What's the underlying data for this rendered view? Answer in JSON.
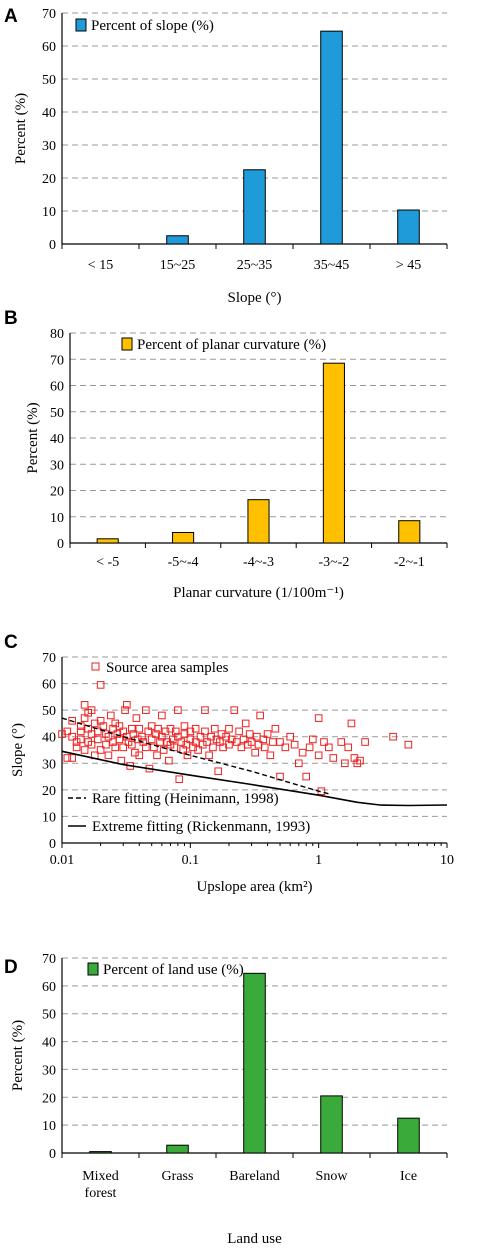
{
  "colors": {
    "blue": "#1f9bd9",
    "orange": "#ffc000",
    "green": "#3aab3a",
    "red": "#ee2222",
    "grid": "#999999"
  },
  "chart_data": [
    {
      "panel": "A",
      "type": "bar",
      "categories": [
        "< 15",
        "15~25",
        "25~35",
        "35~45",
        "> 45"
      ],
      "values": [
        0,
        2.5,
        22.5,
        64.5,
        10.3
      ],
      "legend": "Percent of slope (%)",
      "xlabel": "Slope (°)",
      "ylabel": "Percent (%)",
      "ylim": [
        0,
        70
      ],
      "yticks": [
        "0",
        "10",
        "20",
        "30",
        "40",
        "50",
        "60",
        "70"
      ],
      "grid": true,
      "color": "#1f9bd9"
    },
    {
      "panel": "B",
      "type": "bar",
      "categories": [
        "< -5",
        "-5~-4",
        "-4~-3",
        "-3~-2",
        "-2~-1"
      ],
      "values": [
        1.6,
        4.0,
        16.5,
        68.5,
        8.5
      ],
      "legend": "Percent of planar curvature (%)",
      "xlabel": "Planar curvature (1/100m⁻¹)",
      "ylabel": "Percent (%)",
      "ylim": [
        0,
        80
      ],
      "yticks": [
        "0",
        "10",
        "20",
        "30",
        "40",
        "50",
        "60",
        "70",
        "80"
      ],
      "grid": true,
      "color": "#ffc000"
    },
    {
      "panel": "C",
      "type": "scatter",
      "xscale": "log",
      "xlim": [
        0.01,
        10
      ],
      "ylim": [
        0,
        70
      ],
      "xticks": [
        "0.01",
        "0.1",
        "1",
        "10"
      ],
      "yticks": [
        "0",
        "10",
        "20",
        "30",
        "40",
        "50",
        "60",
        "70"
      ],
      "xlabel": "Upslope area (km²)",
      "ylabel": "Slope (°)",
      "grid": true,
      "series": [
        {
          "name": "Source area samples",
          "marker": "square",
          "points": [
            [
              0.01,
              41
            ],
            [
              0.011,
              42
            ],
            [
              0.011,
              32
            ],
            [
              0.012,
              46
            ],
            [
              0.012,
              40
            ],
            [
              0.012,
              32
            ],
            [
              0.013,
              38
            ],
            [
              0.013,
              36
            ],
            [
              0.014,
              44
            ],
            [
              0.014,
              42
            ],
            [
              0.014,
              39
            ],
            [
              0.015,
              52
            ],
            [
              0.015,
              47
            ],
            [
              0.015,
              35
            ],
            [
              0.016,
              49
            ],
            [
              0.016,
              43
            ],
            [
              0.016,
              38
            ],
            [
              0.017,
              50
            ],
            [
              0.017,
              41
            ],
            [
              0.017,
              37
            ],
            [
              0.018,
              45
            ],
            [
              0.018,
              33
            ],
            [
              0.019,
              42
            ],
            [
              0.019,
              39
            ],
            [
              0.02,
              59.5
            ],
            [
              0.02,
              46
            ],
            [
              0.02,
              35
            ],
            [
              0.021,
              44
            ],
            [
              0.022,
              41
            ],
            [
              0.022,
              37
            ],
            [
              0.023,
              40
            ],
            [
              0.023,
              33
            ],
            [
              0.024,
              48
            ],
            [
              0.025,
              43
            ],
            [
              0.025,
              38
            ],
            [
              0.026,
              45
            ],
            [
              0.026,
              36
            ],
            [
              0.027,
              41
            ],
            [
              0.028,
              39
            ],
            [
              0.028,
              44
            ],
            [
              0.029,
              31
            ],
            [
              0.03,
              42
            ],
            [
              0.03,
              36
            ],
            [
              0.031,
              50
            ],
            [
              0.032,
              52
            ],
            [
              0.032,
              40
            ],
            [
              0.033,
              38
            ],
            [
              0.034,
              29
            ],
            [
              0.035,
              43
            ],
            [
              0.035,
              37
            ],
            [
              0.036,
              41
            ],
            [
              0.037,
              34
            ],
            [
              0.038,
              47
            ],
            [
              0.039,
              39
            ],
            [
              0.04,
              43
            ],
            [
              0.04,
              33
            ],
            [
              0.042,
              40
            ],
            [
              0.043,
              38
            ],
            [
              0.045,
              50
            ],
            [
              0.045,
              36
            ],
            [
              0.047,
              42
            ],
            [
              0.048,
              28
            ],
            [
              0.05,
              39
            ],
            [
              0.05,
              44
            ],
            [
              0.052,
              36
            ],
            [
              0.054,
              41
            ],
            [
              0.055,
              33
            ],
            [
              0.056,
              43
            ],
            [
              0.058,
              38
            ],
            [
              0.06,
              48
            ],
            [
              0.06,
              40
            ],
            [
              0.062,
              35
            ],
            [
              0.064,
              42
            ],
            [
              0.066,
              38
            ],
            [
              0.068,
              31
            ],
            [
              0.07,
              43
            ],
            [
              0.07,
              37
            ],
            [
              0.073,
              39
            ],
            [
              0.075,
              36
            ],
            [
              0.077,
              42
            ],
            [
              0.08,
              40
            ],
            [
              0.08,
              50
            ],
            [
              0.082,
              24
            ],
            [
              0.085,
              38
            ],
            [
              0.088,
              35
            ],
            [
              0.09,
              44
            ],
            [
              0.09,
              41
            ],
            [
              0.093,
              37
            ],
            [
              0.095,
              33
            ],
            [
              0.1,
              39
            ],
            [
              0.1,
              42
            ],
            [
              0.105,
              36
            ],
            [
              0.11,
              43
            ],
            [
              0.11,
              38
            ],
            [
              0.115,
              35
            ],
            [
              0.12,
              40
            ],
            [
              0.125,
              37
            ],
            [
              0.13,
              42
            ],
            [
              0.13,
              50
            ],
            [
              0.135,
              38
            ],
            [
              0.14,
              33
            ],
            [
              0.145,
              40
            ],
            [
              0.15,
              36
            ],
            [
              0.155,
              43
            ],
            [
              0.16,
              39
            ],
            [
              0.165,
              27
            ],
            [
              0.17,
              38
            ],
            [
              0.175,
              41
            ],
            [
              0.18,
              36
            ],
            [
              0.19,
              40
            ],
            [
              0.2,
              37
            ],
            [
              0.2,
              43
            ],
            [
              0.21,
              39
            ],
            [
              0.22,
              50
            ],
            [
              0.23,
              38
            ],
            [
              0.24,
              42
            ],
            [
              0.25,
              36
            ],
            [
              0.26,
              39
            ],
            [
              0.27,
              45
            ],
            [
              0.28,
              37
            ],
            [
              0.29,
              41
            ],
            [
              0.3,
              38
            ],
            [
              0.32,
              34
            ],
            [
              0.33,
              40
            ],
            [
              0.34,
              37
            ],
            [
              0.35,
              48
            ],
            [
              0.37,
              39
            ],
            [
              0.38,
              36
            ],
            [
              0.4,
              41
            ],
            [
              0.42,
              33
            ],
            [
              0.44,
              38
            ],
            [
              0.46,
              43
            ],
            [
              0.5,
              25
            ],
            [
              0.5,
              38
            ],
            [
              0.55,
              36
            ],
            [
              0.6,
              40
            ],
            [
              0.65,
              37
            ],
            [
              0.7,
              30
            ],
            [
              0.75,
              34
            ],
            [
              0.8,
              25
            ],
            [
              0.85,
              36
            ],
            [
              0.9,
              39
            ],
            [
              1.0,
              47
            ],
            [
              1.0,
              33
            ],
            [
              1.05,
              19.5
            ],
            [
              1.1,
              38
            ],
            [
              1.2,
              36
            ],
            [
              1.3,
              32
            ],
            [
              1.5,
              38
            ],
            [
              1.6,
              30
            ],
            [
              1.7,
              36
            ],
            [
              1.8,
              45
            ],
            [
              1.9,
              32
            ],
            [
              2.0,
              30
            ],
            [
              2.1,
              31
            ],
            [
              2.3,
              38
            ],
            [
              3.8,
              40
            ],
            [
              5.0,
              37
            ]
          ]
        },
        {
          "name": "Rare fitting (Heinimann, 1998)",
          "style": "dashed",
          "points": [
            [
              0.01,
              47
            ],
            [
              0.03,
              40
            ],
            [
              0.1,
              33
            ],
            [
              0.3,
              27
            ],
            [
              1,
              19.5
            ],
            [
              1.2,
              18.5
            ]
          ]
        },
        {
          "name": "Extreme fitting (Rickenmann, 1993)",
          "style": "solid",
          "points": [
            [
              0.01,
              34.5
            ],
            [
              0.03,
              29.5
            ],
            [
              0.1,
              25.5
            ],
            [
              0.3,
              22
            ],
            [
              1,
              18
            ],
            [
              2,
              15.3
            ],
            [
              3,
              14.3
            ],
            [
              5,
              14.1
            ],
            [
              10,
              14.3
            ]
          ]
        }
      ]
    },
    {
      "panel": "D",
      "type": "bar",
      "categories": [
        [
          "Mixed",
          "forest"
        ],
        [
          "Grass"
        ],
        [
          "Bareland"
        ],
        [
          "Snow"
        ],
        [
          "Ice"
        ]
      ],
      "values": [
        0.5,
        2.8,
        64.5,
        20.5,
        12.5
      ],
      "legend": "Percent of land use (%)",
      "xlabel": "Land use",
      "ylabel": "Percent (%)",
      "ylim": [
        0,
        70
      ],
      "yticks": [
        "0",
        "10",
        "20",
        "30",
        "40",
        "50",
        "60",
        "70"
      ],
      "grid": true,
      "color": "#3aab3a"
    }
  ]
}
